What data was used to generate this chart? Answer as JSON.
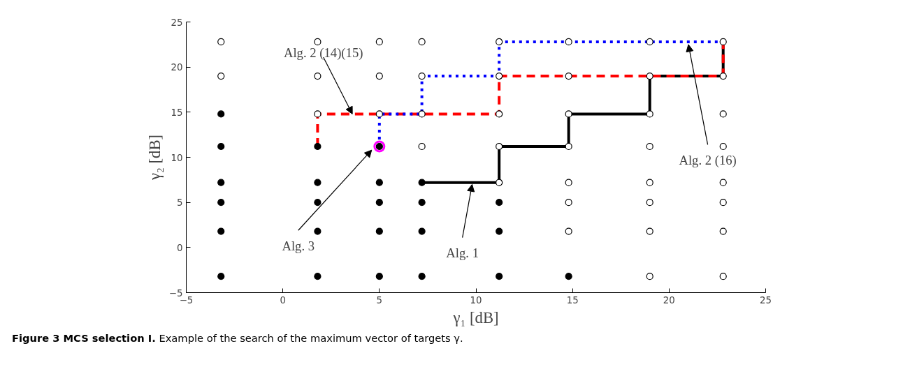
{
  "chart_data": {
    "type": "scatter",
    "xlabel": "γ₁ [dB]",
    "ylabel": "γ₂ [dB]",
    "xlim": [
      -5,
      25
    ],
    "ylim": [
      -5,
      25
    ],
    "xticks": [
      -5,
      0,
      5,
      10,
      15,
      20,
      25
    ],
    "yticks": [
      -5,
      0,
      5,
      10,
      15,
      20,
      25
    ],
    "grid": false,
    "marker": "circle",
    "series": [
      {
        "color": "#000000",
        "x": [
          -3.2,
          -3.2,
          -3.2,
          -3.2,
          -3.2,
          -3.2,
          1.8,
          1.8,
          1.8,
          1.8,
          1.8,
          5,
          5,
          5,
          5,
          5,
          7.2,
          7.2,
          7.2,
          7.2,
          11.2,
          11.2,
          11.2,
          14.8
        ],
        "values": [
          14.8,
          11.2,
          7.2,
          5,
          1.8,
          -3.2,
          11.2,
          7.2,
          5,
          1.8,
          -3.2,
          11.2,
          7.2,
          5,
          1.8,
          -3.2,
          7.2,
          5,
          1.8,
          -3.2,
          5,
          1.8,
          -3.2,
          -3.2
        ]
      },
      {
        "color": "#ffffff",
        "x": [
          -3.2,
          -3.2,
          1.8,
          1.8,
          1.8,
          5,
          5,
          5,
          7.2,
          7.2,
          7.2,
          7.2,
          11.2,
          11.2,
          11.2,
          11.2,
          11.2,
          14.8,
          14.8,
          14.8,
          14.8,
          14.8,
          14.8,
          14.8,
          19,
          19,
          19,
          19,
          19,
          19,
          19,
          19,
          22.8,
          22.8,
          22.8,
          22.8,
          22.8,
          22.8,
          22.8,
          22.8
        ],
        "values": [
          22.8,
          19,
          22.8,
          19,
          14.8,
          22.8,
          19,
          14.8,
          22.8,
          19,
          14.8,
          11.2,
          22.8,
          19,
          14.8,
          11.2,
          7.2,
          22.8,
          19,
          14.8,
          11.2,
          7.2,
          5,
          1.8,
          22.8,
          19,
          14.8,
          11.2,
          7.2,
          5,
          1.8,
          -3.2,
          22.8,
          19,
          14.8,
          11.2,
          7.2,
          5,
          1.8,
          -3.2
        ]
      },
      {
        "type": "line",
        "color": "#000000",
        "line_style": "solid",
        "marker": "none",
        "x": [
          7.2,
          11.2,
          11.2,
          14.8,
          14.8,
          19,
          19,
          22.8,
          22.8
        ],
        "values": [
          7.2,
          7.2,
          11.2,
          11.2,
          14.8,
          14.8,
          19,
          19,
          22.8
        ]
      },
      {
        "type": "line",
        "color": "#ff0000",
        "line_style": "dashed",
        "marker": "none",
        "x": [
          1.8,
          1.8,
          11.2,
          11.2,
          22.8,
          22.8
        ],
        "values": [
          11.2,
          14.8,
          14.8,
          19,
          19,
          22.8
        ]
      },
      {
        "type": "line",
        "color": "#0000ff",
        "line_style": "dotted",
        "marker": "none",
        "x": [
          5,
          5,
          7.2,
          7.2,
          11.2,
          11.2,
          22.8
        ],
        "values": [
          11.2,
          14.8,
          14.8,
          19,
          19,
          22.8,
          22.8
        ]
      },
      {
        "color": "#ff00ff",
        "marker": "circle",
        "x": [
          5
        ],
        "values": [
          11.2
        ]
      }
    ],
    "annotations": [
      {
        "text": "Alg. 2 (14)(15)",
        "x": 3.6,
        "y": 14.8
      },
      {
        "text": "Alg. 3",
        "x": 4.6,
        "y": 10.8
      },
      {
        "text": "Alg. 1",
        "x": 9.8,
        "y": 7.0
      },
      {
        "text": "Alg. 2 (16)",
        "x": 21,
        "y": 22.5
      },
      "Figure 3 MCS selection I.",
      "Example of the search of the maximum vector of targets γ."
    ]
  }
}
